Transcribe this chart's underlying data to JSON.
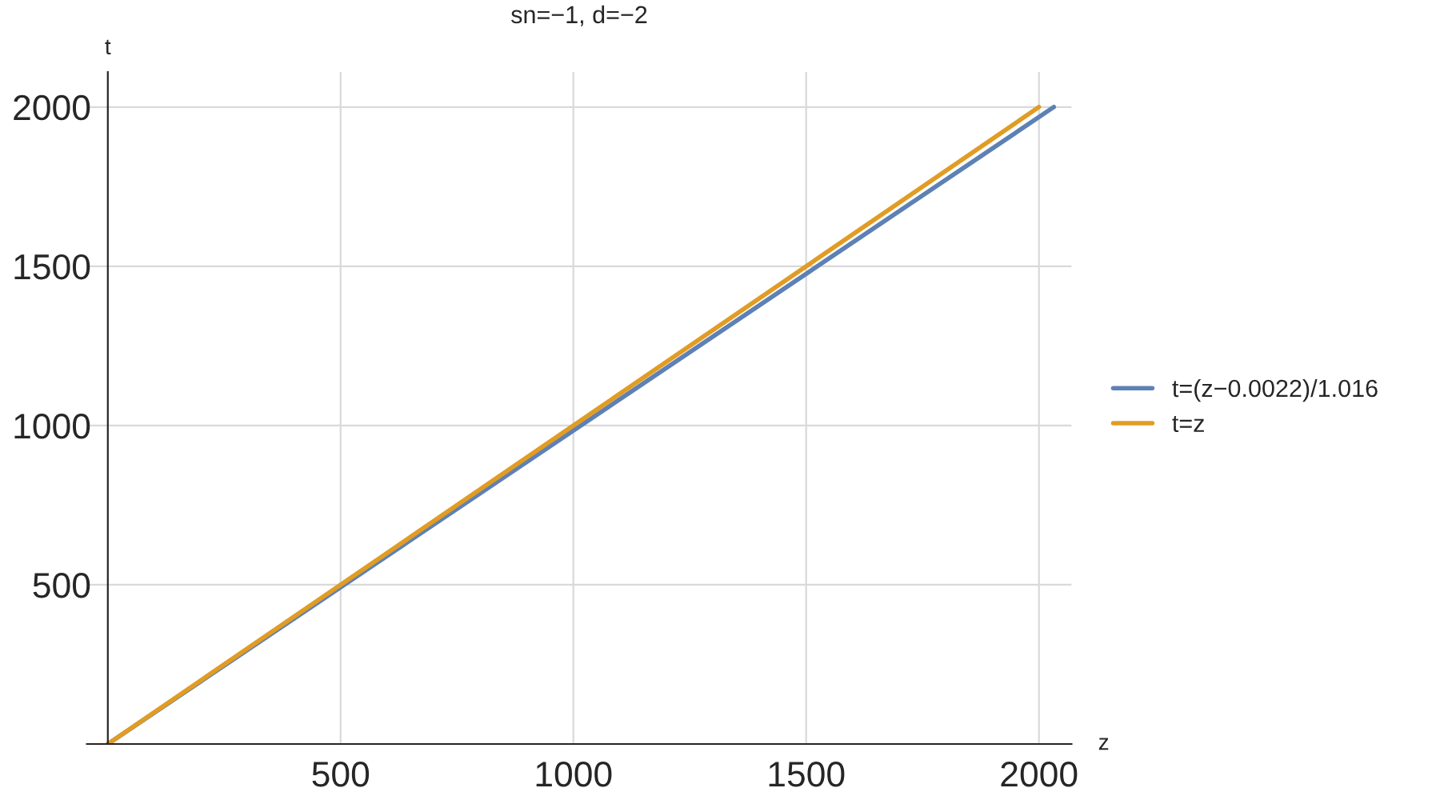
{
  "chart_data": {
    "type": "line",
    "title": "sn=−1, d=−2",
    "xlabel": "z",
    "ylabel": "t",
    "series": [
      {
        "name": "t=(z−0.0022)/1.016",
        "color": "#5e81b5",
        "x": [
          0,
          2032
        ],
        "values": [
          0,
          2000
        ]
      },
      {
        "name": "t=z",
        "color": "#e19c24",
        "x": [
          0,
          2000
        ],
        "values": [
          0,
          2000
        ]
      }
    ],
    "xlim": [
      -45,
      2070
    ],
    "ylim": [
      0,
      2110
    ],
    "xticks": [
      500,
      1000,
      1500,
      2000
    ],
    "yticks": [
      500,
      1000,
      1500,
      2000
    ],
    "grid": true,
    "legend": "right",
    "marker": "none",
    "line_style": "solid"
  }
}
